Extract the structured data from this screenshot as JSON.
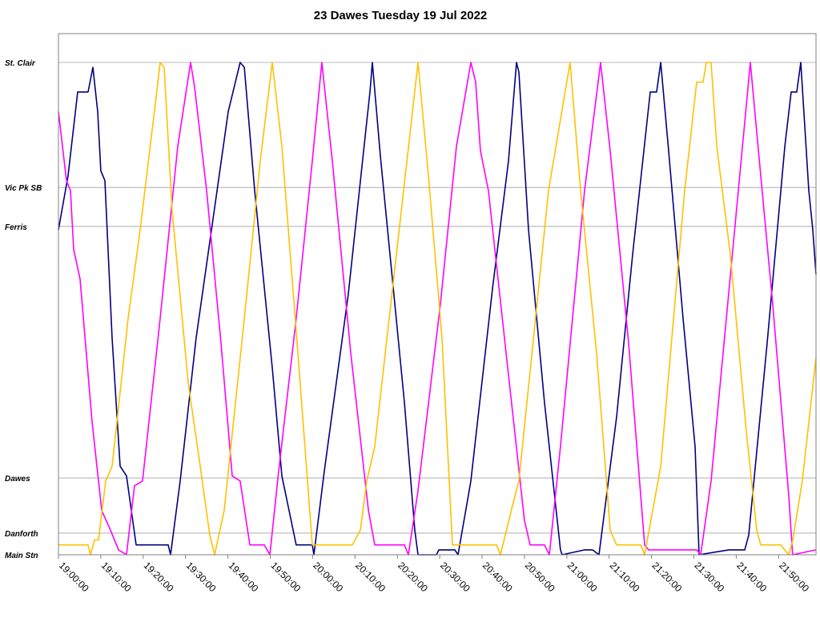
{
  "chart_data": {
    "type": "line",
    "title": "23 Dawes Tuesday 19 Jul 2022",
    "xlabel": "",
    "ylabel": "",
    "xlim": [
      "19:00:00",
      "21:59:00"
    ],
    "ylim": [
      0,
      100
    ],
    "grid": "horizontal at stops",
    "legend": "none",
    "x_ticks": [
      "19:00:00",
      "19:10:00",
      "19:20:00",
      "19:30:00",
      "19:40:00",
      "19:50:00",
      "20:00:00",
      "20:10:00",
      "20:20:00",
      "20:30:00",
      "20:40:00",
      "20:50:00",
      "21:00:00",
      "21:10:00",
      "21:20:00",
      "21:30:00",
      "21:40:00",
      "21:50:00"
    ],
    "stops": [
      {
        "label": "Main Stn",
        "position": 0
      },
      {
        "label": "Danforth",
        "position": 4.4
      },
      {
        "label": "Dawes",
        "position": 15.6
      },
      {
        "label": "Ferris",
        "position": 66.7
      },
      {
        "label": "Vic Pk SB",
        "position": 74.6
      },
      {
        "label": "St. Clair",
        "position": 100
      }
    ],
    "series": [
      {
        "color": "#000080",
        "points": [
          [
            "19:00:00",
            66
          ],
          [
            "19:02:16",
            77
          ],
          [
            "19:04:32",
            94
          ],
          [
            "19:07:00",
            94
          ],
          [
            "19:08:08",
            99
          ],
          [
            "19:09:16",
            90
          ],
          [
            "19:10:00",
            78
          ],
          [
            "19:10:58",
            76
          ],
          [
            "19:12:40",
            44
          ],
          [
            "19:14:33",
            18
          ],
          [
            "19:16:04",
            16
          ],
          [
            "19:18:20",
            2
          ],
          [
            "19:25:54",
            2
          ],
          [
            "19:26:28",
            0
          ],
          [
            "19:28:44",
            15
          ],
          [
            "19:32:30",
            44
          ],
          [
            "19:36:18",
            67
          ],
          [
            "19:40:05",
            90
          ],
          [
            "19:42:54",
            100
          ],
          [
            "19:43:52",
            99
          ],
          [
            "19:46:19",
            74
          ],
          [
            "19:50:28",
            38
          ],
          [
            "19:52:44",
            16
          ],
          [
            "19:56:08",
            2
          ],
          [
            "19:59:55",
            2
          ],
          [
            "20:00:18",
            0
          ],
          [
            "20:02:46",
            17
          ],
          [
            "20:08:26",
            53
          ],
          [
            "20:12:47",
            88
          ],
          [
            "20:13:32",
            94
          ],
          [
            "20:14:06",
            100
          ],
          [
            "20:16:00",
            81
          ],
          [
            "20:18:50",
            56
          ],
          [
            "20:21:40",
            31
          ],
          [
            "20:24:07",
            5
          ],
          [
            "20:24:53",
            0
          ],
          [
            "20:29:13",
            0
          ],
          [
            "20:29:48",
            1
          ],
          [
            "20:33:34",
            1
          ],
          [
            "20:34:20",
            0
          ],
          [
            "20:37:21",
            15
          ],
          [
            "20:42:27",
            54
          ],
          [
            "20:46:14",
            80
          ],
          [
            "20:48:08",
            100
          ],
          [
            "20:48:42",
            98
          ],
          [
            "20:50:58",
            66
          ],
          [
            "20:54:44",
            31
          ],
          [
            "20:58:30",
            1
          ],
          [
            "20:58:54",
            0
          ],
          [
            "21:04:12",
            1
          ],
          [
            "21:06:05",
            1
          ],
          [
            "21:07:36",
            0
          ],
          [
            "21:11:46",
            28
          ],
          [
            "21:15:32",
            61
          ],
          [
            "21:19:42",
            94
          ],
          [
            "21:21:13",
            94
          ],
          [
            "21:22:10",
            100
          ],
          [
            "21:24:03",
            82
          ],
          [
            "21:27:27",
            48
          ],
          [
            "21:30:17",
            22
          ],
          [
            "21:31:14",
            0
          ],
          [
            "21:38:13",
            1
          ],
          [
            "21:39:10",
            1
          ],
          [
            "21:42:00",
            1
          ],
          [
            "21:42:57",
            4
          ],
          [
            "21:47:18",
            43
          ],
          [
            "21:51:28",
            83
          ],
          [
            "21:52:58",
            94
          ],
          [
            "21:54:17",
            94
          ],
          [
            "21:55:14",
            100
          ],
          [
            "21:57:08",
            74
          ],
          [
            "21:58:04",
            66
          ],
          [
            "21:58:50",
            57
          ]
        ]
      },
      {
        "color": "#ff00ff",
        "points": [
          [
            "19:00:00",
            90
          ],
          [
            "19:01:53",
            76
          ],
          [
            "19:02:50",
            74
          ],
          [
            "19:03:36",
            62
          ],
          [
            "19:05:06",
            56
          ],
          [
            "19:07:56",
            27
          ],
          [
            "19:10:12",
            9
          ],
          [
            "19:12:17",
            5
          ],
          [
            "19:14:11",
            1
          ],
          [
            "19:16:04",
            0
          ],
          [
            "19:17:00",
            7
          ],
          [
            "19:17:58",
            14
          ],
          [
            "19:19:51",
            15
          ],
          [
            "19:24:00",
            48
          ],
          [
            "19:28:10",
            83
          ],
          [
            "19:31:11",
            100
          ],
          [
            "19:32:08",
            95
          ],
          [
            "19:34:58",
            74
          ],
          [
            "19:38:22",
            43
          ],
          [
            "19:41:01",
            16
          ],
          [
            "19:42:54",
            15
          ],
          [
            "19:45:11",
            2
          ],
          [
            "19:48:35",
            2
          ],
          [
            "19:49:54",
            0
          ],
          [
            "19:51:59",
            17
          ],
          [
            "19:56:08",
            48
          ],
          [
            "19:59:55",
            80
          ],
          [
            "20:02:11",
            100
          ],
          [
            "20:04:39",
            80
          ],
          [
            "20:09:00",
            41
          ],
          [
            "20:13:10",
            9
          ],
          [
            "20:14:40",
            2
          ],
          [
            "20:21:40",
            2
          ],
          [
            "20:22:36",
            0
          ],
          [
            "20:24:53",
            13
          ],
          [
            "20:30:10",
            51
          ],
          [
            "20:33:57",
            83
          ],
          [
            "20:37:21",
            100
          ],
          [
            "20:38:29",
            96
          ],
          [
            "20:39:37",
            82
          ],
          [
            "20:41:30",
            74
          ],
          [
            "20:45:40",
            41
          ],
          [
            "20:50:00",
            7
          ],
          [
            "20:51:20",
            2
          ],
          [
            "20:54:44",
            2
          ],
          [
            "20:55:53",
            0
          ],
          [
            "20:58:30",
            22
          ],
          [
            "21:04:12",
            74
          ],
          [
            "21:07:59",
            100
          ],
          [
            "21:10:15",
            82
          ],
          [
            "21:14:36",
            43
          ],
          [
            "21:18:22",
            2
          ],
          [
            "21:19:19",
            1
          ],
          [
            "21:24:03",
            1
          ],
          [
            "21:30:40",
            1
          ],
          [
            "21:31:36",
            0
          ],
          [
            "21:34:04",
            15
          ],
          [
            "21:39:44",
            67
          ],
          [
            "21:43:20",
            100
          ],
          [
            "21:45:47",
            77
          ],
          [
            "21:48:36",
            51
          ],
          [
            "21:52:24",
            12
          ],
          [
            "21:53:18",
            0
          ],
          [
            "21:58:50",
            1
          ]
        ]
      },
      {
        "color": "#ffc000",
        "points": [
          [
            "19:00:00",
            2
          ],
          [
            "19:07:00",
            2
          ],
          [
            "19:07:34",
            0
          ],
          [
            "19:08:30",
            3
          ],
          [
            "19:09:27",
            3
          ],
          [
            "19:11:09",
            15
          ],
          [
            "19:12:40",
            18
          ],
          [
            "19:16:27",
            48
          ],
          [
            "19:19:17",
            66
          ],
          [
            "19:23:04",
            93
          ],
          [
            "19:24:00",
            100
          ],
          [
            "19:24:57",
            99
          ],
          [
            "19:26:50",
            70
          ],
          [
            "19:30:37",
            35
          ],
          [
            "19:33:28",
            18
          ],
          [
            "19:35:44",
            4
          ],
          [
            "19:36:52",
            0
          ],
          [
            "19:39:08",
            9
          ],
          [
            "19:43:52",
            48
          ],
          [
            "19:47:38",
            80
          ],
          [
            "19:50:28",
            100
          ],
          [
            "19:52:44",
            83
          ],
          [
            "19:56:31",
            41
          ],
          [
            "19:59:55",
            2
          ],
          [
            "20:09:23",
            2
          ],
          [
            "20:11:16",
            5
          ],
          [
            "20:12:47",
            15
          ],
          [
            "20:14:40",
            22
          ],
          [
            "20:19:46",
            61
          ],
          [
            "20:24:53",
            100
          ],
          [
            "20:27:20",
            77
          ],
          [
            "20:30:33",
            44
          ],
          [
            "20:33:00",
            2
          ],
          [
            "20:33:57",
            2
          ],
          [
            "20:43:24",
            2
          ],
          [
            "20:44:21",
            0
          ],
          [
            "20:47:11",
            10
          ],
          [
            "20:48:42",
            15
          ],
          [
            "20:55:41",
            74
          ],
          [
            "21:00:47",
            100
          ],
          [
            "21:03:15",
            74
          ],
          [
            "21:07:02",
            41
          ],
          [
            "21:10:15",
            5
          ],
          [
            "21:11:46",
            2
          ],
          [
            "21:17:26",
            2
          ],
          [
            "21:18:22",
            0
          ],
          [
            "21:22:10",
            18
          ],
          [
            "21:27:50",
            74
          ],
          [
            "21:30:40",
            96
          ],
          [
            "21:32:10",
            96
          ],
          [
            "21:32:56",
            100
          ],
          [
            "21:34:04",
            100
          ],
          [
            "21:35:24",
            83
          ],
          [
            "21:38:36",
            61
          ],
          [
            "21:42:23",
            25
          ],
          [
            "21:44:50",
            5
          ],
          [
            "21:45:47",
            2
          ],
          [
            "21:50:30",
            2
          ],
          [
            "21:52:24",
            0
          ],
          [
            "21:53:21",
            3
          ],
          [
            "21:55:36",
            15
          ],
          [
            "21:58:50",
            40
          ]
        ]
      }
    ]
  }
}
